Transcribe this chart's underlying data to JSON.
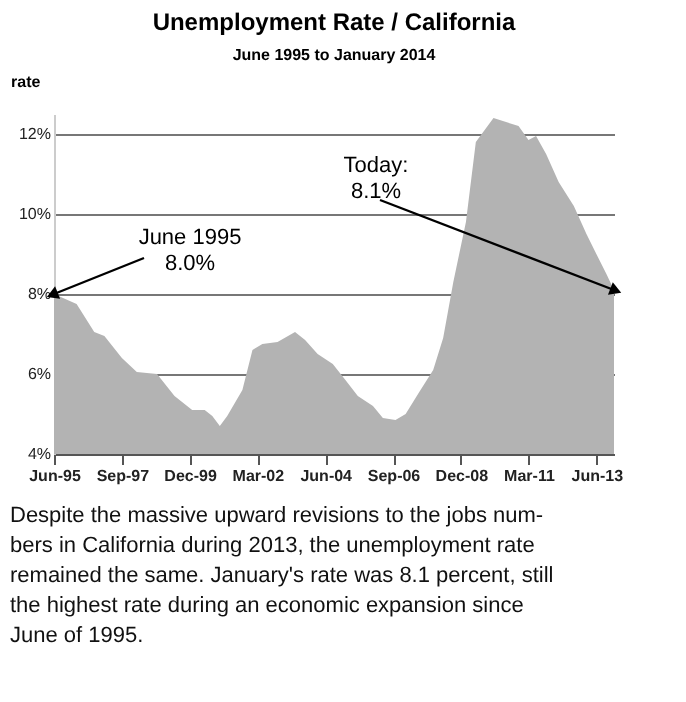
{
  "chart_data": {
    "type": "area",
    "title": "Unemployment Rate / California",
    "subtitle": "June 1995 to January 2014",
    "ylabel": "rate",
    "x": [
      "1995-06",
      "1996-03",
      "1996-10",
      "1997-02",
      "1997-09",
      "1998-03",
      "1998-11",
      "1999-06",
      "2000-01",
      "2000-06",
      "2000-09",
      "2000-12",
      "2001-03",
      "2001-09",
      "2002-01",
      "2002-05",
      "2002-11",
      "2003-06",
      "2003-10",
      "2004-03",
      "2004-09",
      "2005-02",
      "2005-07",
      "2006-01",
      "2006-05",
      "2006-10",
      "2007-02",
      "2007-07",
      "2008-01",
      "2008-05",
      "2008-09",
      "2009-02",
      "2009-06",
      "2010-01",
      "2010-11",
      "2011-03",
      "2011-06",
      "2011-10",
      "2012-03",
      "2012-09",
      "2013-02",
      "2013-06",
      "2013-10",
      "2014-01"
    ],
    "values": [
      8.0,
      7.75,
      7.05,
      6.95,
      6.4,
      6.05,
      6.0,
      5.45,
      5.1,
      5.1,
      4.95,
      4.7,
      4.95,
      5.6,
      6.6,
      6.75,
      6.8,
      7.05,
      6.85,
      6.5,
      6.25,
      5.85,
      5.45,
      5.2,
      4.9,
      4.85,
      5.0,
      5.5,
      6.1,
      6.9,
      8.3,
      9.8,
      11.8,
      12.4,
      12.2,
      11.85,
      11.95,
      11.5,
      10.8,
      10.2,
      9.5,
      9.0,
      8.5,
      8.1
    ],
    "color": "#b3b3b3",
    "xlim": [
      "1995-06",
      "2014-01"
    ],
    "xticks": [
      {
        "value": "1995-06",
        "label": "Jun-95"
      },
      {
        "value": "1997-09",
        "label": "Sep-97"
      },
      {
        "value": "1999-12",
        "label": "Dec-99"
      },
      {
        "value": "2002-03",
        "label": "Mar-02"
      },
      {
        "value": "2004-06",
        "label": "Jun-04"
      },
      {
        "value": "2006-09",
        "label": "Sep-06"
      },
      {
        "value": "2008-12",
        "label": "Dec-08"
      },
      {
        "value": "2011-03",
        "label": "Mar-11"
      },
      {
        "value": "2013-06",
        "label": "Jun-13"
      }
    ],
    "ylim": [
      4,
      12.5
    ],
    "yticks": [
      {
        "value": 4,
        "label": "4%"
      },
      {
        "value": 6,
        "label": "6%"
      },
      {
        "value": 8,
        "label": "8%"
      },
      {
        "value": 10,
        "label": "10%"
      },
      {
        "value": 12,
        "label": "12%"
      }
    ],
    "grid": "y",
    "annotations": [
      {
        "text": "June 1995\n8.0%",
        "x": "1995-06",
        "y": 8.0
      },
      {
        "text": "Today:\n8.1%",
        "x": "2014-01",
        "y": 8.1
      },
      "Despite the massive upward revisions to the jobs num-\nbers in California during 2013, the unemployment rate\nremained the same. January's rate was 8.1 percent, still\nthe highest rate during an economic expansion since\nJune of 1995."
    ]
  }
}
